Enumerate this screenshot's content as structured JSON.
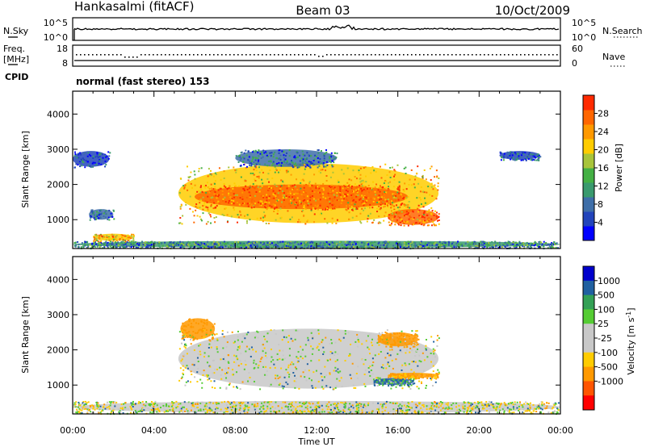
{
  "header": {
    "station": "Hankasalmi (fitACF)",
    "beam": "Beam 03",
    "date": "10/Oct/2009"
  },
  "strips": {
    "nsky_label": "N.Sky",
    "nsky_ticks": [
      "10^5",
      "10^0"
    ],
    "nsearch_label": "N.Search",
    "nsearch_ticks": [
      "10^5",
      "10^0"
    ],
    "freq_label": "Freq.",
    "freq_unit": "[MHz]",
    "freq_ticks": [
      "18",
      "8"
    ],
    "nave_label": "Nave",
    "nave_ticks": [
      "60",
      "0"
    ],
    "cpid_label": "CPID",
    "cpid_value": "normal (fast stereo) 153"
  },
  "colors": {
    "power_scale": [
      "#0000ff",
      "#2244bb",
      "#3e6ea8",
      "#3a9a6e",
      "#44b044",
      "#a8c43a",
      "#ffcc00",
      "#ff9900",
      "#ff6600",
      "#ff2a00"
    ],
    "velocity_scale": [
      "#0000cc",
      "#2060a0",
      "#33a055",
      "#55cc33",
      "#c8c8c8",
      "#c8c8c8",
      "#ffcc00",
      "#ff9900",
      "#ff5500",
      "#ff0000"
    ]
  },
  "chart_data": [
    {
      "type": "heatmap",
      "panel": "power",
      "xlabel": "",
      "ylabel": "Slant Range [km]",
      "x_ticks": [
        "00:00",
        "04:00",
        "08:00",
        "12:00",
        "16:00",
        "20:00",
        "00:00"
      ],
      "x_range_hours": [
        0,
        24
      ],
      "y_ticks": [
        1000,
        2000,
        3000,
        4000
      ],
      "ylim": [
        180,
        4650
      ],
      "colorbar_label": "Power [dB]",
      "colorbar_ticks": [
        "4",
        "8",
        "12",
        "16",
        "20",
        "24",
        "28"
      ],
      "colorbar_range": [
        0,
        32
      ],
      "regions": [
        {
          "t0": 5.2,
          "t1": 18.0,
          "r0": 900,
          "r1": 2600,
          "level": 22
        },
        {
          "t0": 6.0,
          "t1": 16.5,
          "r0": 1300,
          "r1": 2000,
          "level": 27
        },
        {
          "t0": 8.0,
          "t1": 13.0,
          "r0": 2500,
          "r1": 3000,
          "level": 8
        },
        {
          "t0": 15.5,
          "t1": 18.0,
          "r0": 850,
          "r1": 1300,
          "level": 28
        },
        {
          "t0": 0.0,
          "t1": 1.8,
          "r0": 2500,
          "r1": 2950,
          "level": 6
        },
        {
          "t0": 21.0,
          "t1": 23.0,
          "r0": 2700,
          "r1": 2950,
          "level": 6
        },
        {
          "t0": 0.8,
          "t1": 2.0,
          "r0": 1000,
          "r1": 1300,
          "level": 7
        },
        {
          "t0": 0.0,
          "t1": 24.0,
          "r0": 200,
          "r1": 400,
          "level": 10
        },
        {
          "t0": 1.0,
          "t1": 3.0,
          "r0": 400,
          "r1": 600,
          "level": 22
        }
      ]
    },
    {
      "type": "heatmap",
      "panel": "velocity",
      "xlabel": "Time UT",
      "ylabel": "Slant Range [km]",
      "x_ticks": [
        "00:00",
        "04:00",
        "08:00",
        "12:00",
        "16:00",
        "20:00",
        "00:00"
      ],
      "x_range_hours": [
        0,
        24
      ],
      "y_ticks": [
        1000,
        2000,
        3000,
        4000
      ],
      "ylim": [
        180,
        4650
      ],
      "colorbar_label": "Velocity [m s^-1]",
      "colorbar_ticks": [
        "1000",
        "500",
        "100",
        "25",
        "-25",
        "-100",
        "-500",
        "-1000"
      ],
      "regions": [
        {
          "t0": 5.2,
          "t1": 18.0,
          "r0": 900,
          "r1": 2600,
          "velocity": 0
        },
        {
          "t0": 5.3,
          "t1": 7.0,
          "r0": 2300,
          "r1": 2900,
          "velocity": -300
        },
        {
          "t0": 15.0,
          "t1": 17.0,
          "r0": 2100,
          "r1": 2500,
          "velocity": -300
        },
        {
          "t0": 15.5,
          "t1": 18.0,
          "r0": 1200,
          "r1": 1350,
          "velocity": -150
        },
        {
          "t0": 14.8,
          "t1": 16.8,
          "r0": 1000,
          "r1": 1200,
          "velocity": 120
        },
        {
          "t0": 0.0,
          "t1": 24.0,
          "r0": 200,
          "r1": 550,
          "velocity": 0
        }
      ]
    }
  ]
}
